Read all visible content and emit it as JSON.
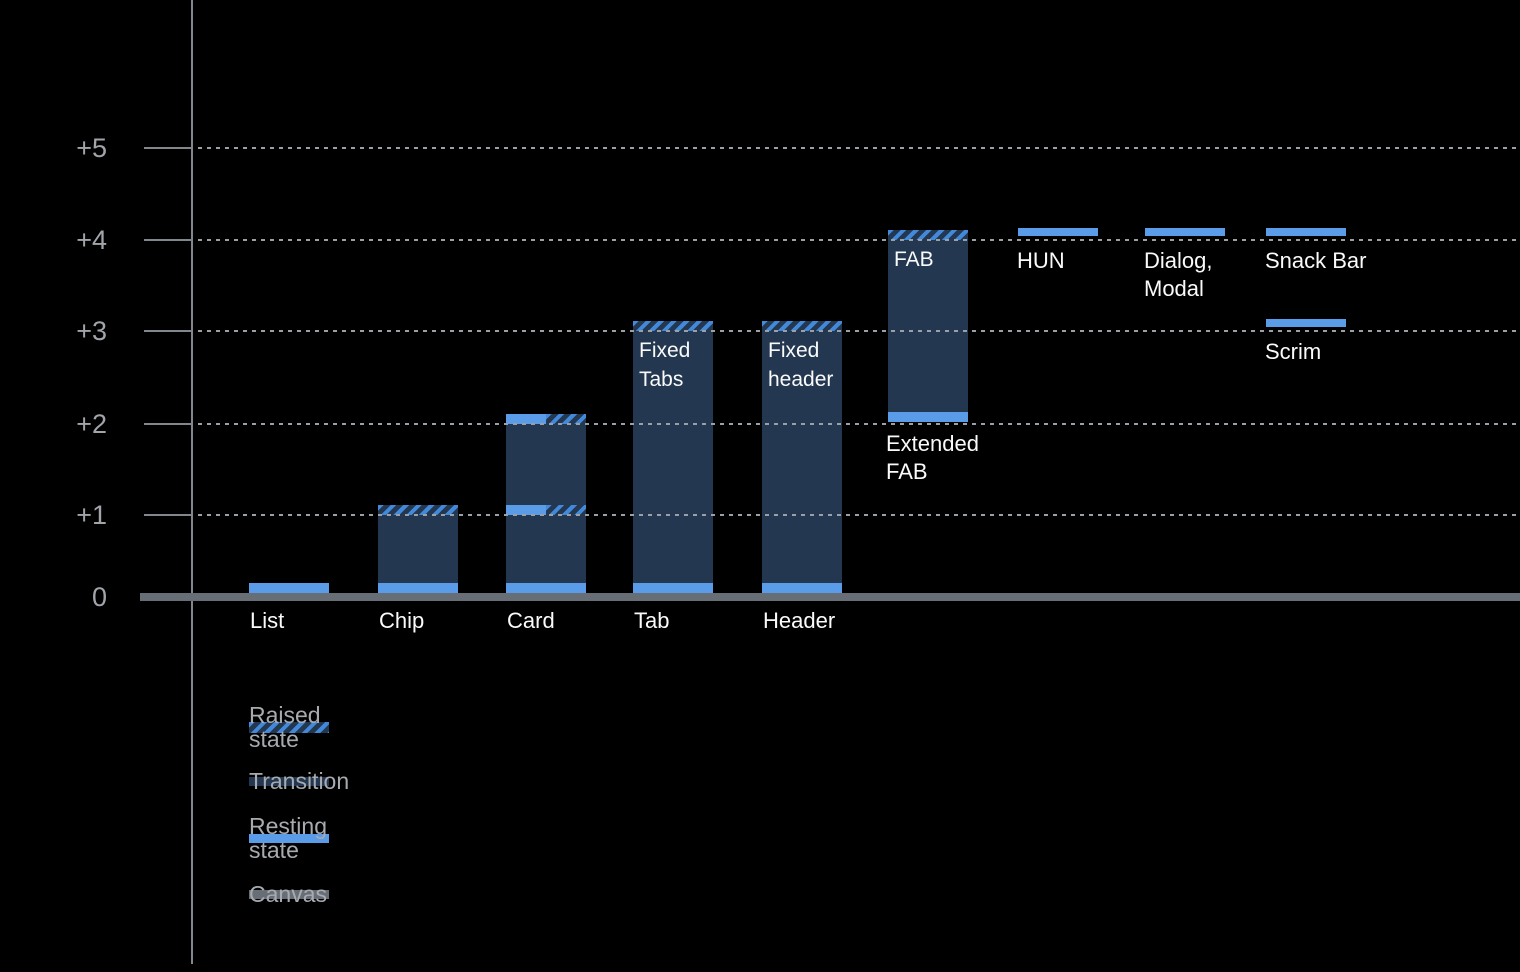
{
  "palette": {
    "transition": "#233750",
    "resting": "#5b9ce8",
    "raised_stripe": "#4289d9",
    "canvas": "#686e76",
    "axis": "#82878e",
    "grid_dot": "#9aa0a6",
    "tick_label": "#a1a5aa",
    "legend_text": "#a7abb0",
    "bar_label": "#fafafa",
    "background": "#000000"
  },
  "chart_data": {
    "type": "bar",
    "description": "Material elevation chart: UI components with resting, transition and raised elevation states above the canvas",
    "y_axis": {
      "ticks": [
        {
          "label": "+5",
          "value": 5
        },
        {
          "label": "+4",
          "value": 4
        },
        {
          "label": "+3",
          "value": 3
        },
        {
          "label": "+2",
          "value": 2
        },
        {
          "label": "+1",
          "value": 1
        },
        {
          "label": "0",
          "value": 0
        }
      ],
      "range": [
        0,
        5
      ],
      "gridlines": "dotted"
    },
    "legend": [
      {
        "label": "Raised state",
        "swatch": "raised"
      },
      {
        "label": "Transition",
        "swatch": "transition"
      },
      {
        "label": "Resting state",
        "swatch": "resting"
      },
      {
        "label": "Canvas",
        "swatch": "canvas"
      }
    ],
    "components": [
      {
        "name": "List",
        "slot": 0,
        "segments": [
          {
            "type": "resting",
            "level": 0
          }
        ],
        "labels": [
          {
            "text": "List",
            "pos": "axis"
          }
        ]
      },
      {
        "name": "Chip",
        "slot": 1,
        "segments": [
          {
            "type": "raised",
            "level": 1
          },
          {
            "type": "transition",
            "from": 0,
            "to": 1
          },
          {
            "type": "resting",
            "level": 0
          }
        ],
        "labels": [
          {
            "text": "Chip",
            "pos": "axis"
          }
        ]
      },
      {
        "name": "Card",
        "slot": 2,
        "segments": [
          {
            "type": "transition",
            "from": 0,
            "to": 2
          },
          {
            "type": "rest_raised",
            "level": 2
          },
          {
            "type": "rest_raised",
            "level": 1
          },
          {
            "type": "resting",
            "level": 0
          }
        ],
        "labels": [
          {
            "text": "Card",
            "pos": "axis"
          }
        ]
      },
      {
        "name": "Tab",
        "slot": 3,
        "segments": [
          {
            "type": "raised",
            "level": 3
          },
          {
            "type": "transition",
            "from": 0,
            "to": 3
          },
          {
            "type": "resting",
            "level": 0
          }
        ],
        "labels": [
          {
            "text": "Tab",
            "pos": "axis"
          },
          {
            "text": "Fixed\nTabs",
            "pos": "inside",
            "at_level": 3
          }
        ]
      },
      {
        "name": "Header",
        "slot": 4,
        "segments": [
          {
            "type": "raised",
            "level": 3
          },
          {
            "type": "transition",
            "from": 0,
            "to": 3
          },
          {
            "type": "resting",
            "level": 0
          }
        ],
        "labels": [
          {
            "text": "Header",
            "pos": "axis"
          },
          {
            "text": "Fixed\nheader",
            "pos": "inside",
            "at_level": 3
          }
        ]
      },
      {
        "name": "FAB",
        "slot": 5,
        "segments": [
          {
            "type": "raised",
            "level": 4
          },
          {
            "type": "transition",
            "from": 2,
            "to": 4
          },
          {
            "type": "resting",
            "level": 2
          }
        ],
        "labels": [
          {
            "text": "FAB",
            "pos": "inside",
            "at_level": 4
          },
          {
            "text": "Extended\nFAB",
            "pos": "below",
            "at_level": 2
          }
        ]
      },
      {
        "name": "HUN",
        "slot": 6,
        "segments": [
          {
            "type": "resting",
            "level": 4
          }
        ],
        "labels": [
          {
            "text": "HUN",
            "pos": "under_band",
            "at_level": 4
          }
        ]
      },
      {
        "name": "Dialog, Modal",
        "slot": 7,
        "segments": [
          {
            "type": "resting",
            "level": 4
          }
        ],
        "labels": [
          {
            "text": "Dialog,\nModal",
            "pos": "under_band",
            "at_level": 4
          }
        ]
      },
      {
        "name": "Snack Bar",
        "slot": 8,
        "segments": [
          {
            "type": "resting",
            "level": 4
          }
        ],
        "labels": [
          {
            "text": "Snack Bar",
            "pos": "under_band",
            "at_level": 4
          }
        ]
      },
      {
        "name": "Scrim",
        "slot": 8,
        "segments": [
          {
            "type": "resting",
            "level": 3
          }
        ],
        "labels": [
          {
            "text": "Scrim",
            "pos": "under_band",
            "at_level": 3
          }
        ]
      }
    ]
  }
}
